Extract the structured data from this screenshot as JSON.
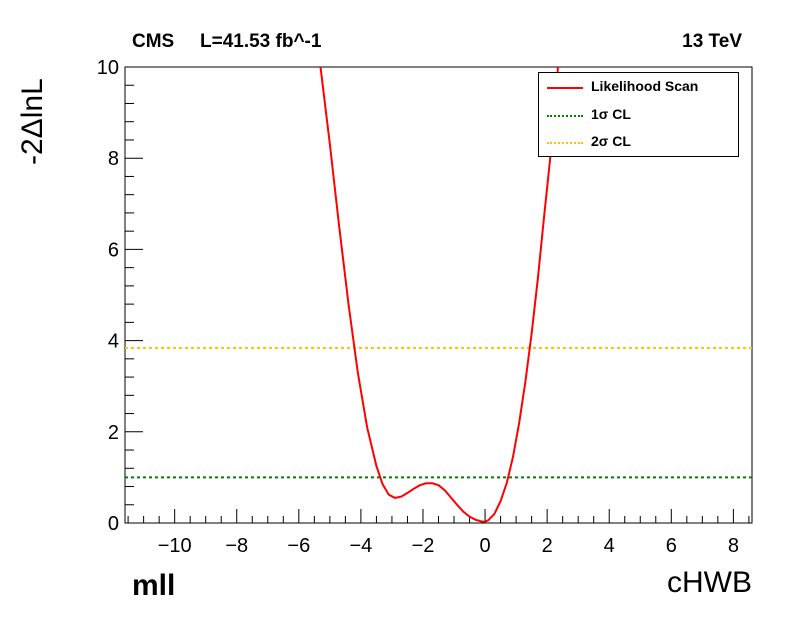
{
  "header": {
    "experiment": "CMS",
    "lumi": "L=41.53 fb^-1",
    "energy": "13 TeV",
    "region": "mll"
  },
  "chart_data": {
    "type": "line",
    "xlabel": "cHWB",
    "ylabel": "-2ΔlnL",
    "xlim": [
      -11.6,
      8.6
    ],
    "ylim": [
      0,
      10
    ],
    "x_ticks": [
      -10,
      -8,
      -6,
      -4,
      -2,
      0,
      2,
      4,
      6,
      8
    ],
    "x_tick_labels": [
      "−10",
      "−8",
      "−6",
      "−4",
      "−2",
      "0",
      "2",
      "4",
      "6",
      "8"
    ],
    "y_ticks": [
      0,
      2,
      4,
      6,
      8,
      10
    ],
    "y_tick_labels": [
      "0",
      "2",
      "4",
      "6",
      "8",
      "10"
    ],
    "grid": false,
    "legend_position": "top-right",
    "series": [
      {
        "name": "Likelihood Scan",
        "color": "#ff0000",
        "style": "solid",
        "x": [
          -5.3,
          -5.0,
          -4.7,
          -4.4,
          -4.1,
          -3.8,
          -3.5,
          -3.3,
          -3.1,
          -2.9,
          -2.7,
          -2.5,
          -2.3,
          -2.1,
          -1.9,
          -1.7,
          -1.5,
          -1.3,
          -1.1,
          -0.9,
          -0.7,
          -0.5,
          -0.3,
          -0.1,
          0.0,
          0.1,
          0.3,
          0.5,
          0.7,
          0.9,
          1.1,
          1.3,
          1.5,
          1.7,
          1.9,
          2.1,
          2.35
        ],
        "y": [
          10.0,
          8.3,
          6.5,
          4.8,
          3.3,
          2.1,
          1.25,
          0.85,
          0.62,
          0.55,
          0.58,
          0.66,
          0.75,
          0.83,
          0.87,
          0.87,
          0.83,
          0.72,
          0.56,
          0.4,
          0.25,
          0.14,
          0.07,
          0.03,
          0.03,
          0.06,
          0.2,
          0.48,
          0.88,
          1.45,
          2.2,
          3.1,
          4.15,
          5.35,
          6.7,
          8.0,
          10.0
        ]
      },
      {
        "name": "1σ CL",
        "color": "#008000",
        "style": "dotted",
        "x": [
          -11.6,
          8.6
        ],
        "y": [
          1.0,
          1.0
        ]
      },
      {
        "name": "2σ CL",
        "color": "#ffc000",
        "style": "dotted",
        "x": [
          -11.6,
          8.6
        ],
        "y": [
          3.84,
          3.84
        ]
      }
    ]
  }
}
